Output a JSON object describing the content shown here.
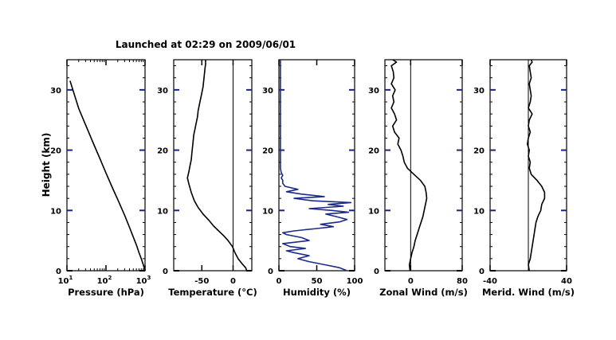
{
  "title": "Launched at 02:29 on 2009/06/01",
  "colors": {
    "axis": "#000000",
    "profile": "#000000",
    "humidity": "#1c2b8a",
    "tick_major": "#1a237e"
  },
  "chart_data": [
    {
      "type": "line",
      "id": "pressure",
      "xlabel": "Pressure (hPa)",
      "ylabel": "Height (km)",
      "xscale": "log",
      "xlim": [
        10,
        1000
      ],
      "xticks": [
        {
          "v": 10,
          "base": "10",
          "exp": "1"
        },
        {
          "v": 100,
          "base": "10",
          "exp": "2"
        },
        {
          "v": 1000,
          "base": "10",
          "exp": "3"
        }
      ],
      "ylim": [
        0,
        35
      ],
      "yticks": [
        "0",
        "10",
        "20",
        "30"
      ],
      "x": [
        1000,
        900,
        800,
        700,
        600,
        500,
        400,
        300,
        200,
        150,
        100,
        70,
        50,
        30,
        20,
        12
      ],
      "y": [
        0,
        1,
        2,
        3,
        4.3,
        5.6,
        7.2,
        9.2,
        11.8,
        13.6,
        16.2,
        18.6,
        20.8,
        24.2,
        26.9,
        31.5
      ]
    },
    {
      "type": "line",
      "id": "temperature",
      "xlabel": "Temperature (°C)",
      "xlim": [
        -95,
        30
      ],
      "xticks": [
        {
          "v": -50,
          "label": "-50"
        },
        {
          "v": 0,
          "label": "0"
        }
      ],
      "vline": 0,
      "ylim": [
        0,
        35
      ],
      "yticks": [
        "0",
        "10",
        "20",
        "30"
      ],
      "x": [
        22,
        20,
        14,
        8,
        3,
        -1,
        -8,
        -15,
        -23,
        -31,
        -39,
        -48,
        -56,
        -62,
        -67,
        -71,
        -73,
        -71,
        -69,
        -67,
        -66,
        -65,
        -64,
        -63,
        -61,
        -59,
        -57,
        -56,
        -54,
        -52,
        -50,
        -48,
        -47,
        -46,
        -45,
        -44,
        -44
      ],
      "y": [
        0,
        0.5,
        1.2,
        2,
        3,
        4,
        5,
        5.8,
        6.6,
        7.4,
        8.4,
        9.4,
        10.5,
        11.6,
        13,
        14.5,
        15.4,
        16.3,
        17.4,
        18.4,
        19.4,
        20.4,
        21.4,
        22.5,
        23.5,
        24.5,
        25.5,
        26.5,
        27.5,
        28.5,
        29.5,
        30.5,
        31.5,
        32.5,
        33.5,
        34.3,
        35
      ]
    },
    {
      "type": "line",
      "id": "humidity",
      "xlabel": "Humidity (%)",
      "xlim": [
        0,
        100
      ],
      "xticks": [
        {
          "v": 0,
          "label": "0"
        },
        {
          "v": 50,
          "label": "50"
        },
        {
          "v": 100,
          "label": "100"
        }
      ],
      "ylim": [
        0,
        35
      ],
      "yticks": [
        "0",
        "10",
        "20",
        "30"
      ],
      "x": [
        90,
        80,
        60,
        40,
        25,
        40,
        20,
        10,
        35,
        15,
        5,
        40,
        30,
        10,
        5,
        20,
        50,
        72,
        55,
        80,
        90,
        75,
        62,
        92,
        70,
        40,
        85,
        65,
        95,
        45,
        20,
        60,
        30,
        10,
        25,
        8,
        5,
        5,
        3,
        5,
        3,
        2,
        2,
        2
      ],
      "y": [
        0,
        0.5,
        1,
        1.5,
        2,
        2.5,
        3,
        3.3,
        3.7,
        4,
        4.5,
        5,
        5.5,
        6,
        6.3,
        6.6,
        7,
        7.3,
        7.7,
        8.1,
        8.5,
        9,
        9.4,
        9.7,
        10,
        10.3,
        10.7,
        11,
        11.3,
        11.6,
        12,
        12.3,
        12.7,
        13.1,
        13.5,
        14,
        14.5,
        15,
        15.4,
        15.8,
        16.3,
        17,
        25,
        35
      ]
    },
    {
      "type": "line",
      "id": "zonal",
      "xlabel": "Zonal Wind (m/s)",
      "xlim": [
        -40,
        80
      ],
      "xticks": [
        {
          "v": 0,
          "label": "0"
        },
        {
          "v": 80,
          "label": "80"
        }
      ],
      "vline": 0,
      "ylim": [
        0,
        35
      ],
      "yticks": [
        "0",
        "10",
        "20",
        "30"
      ],
      "x": [
        -1,
        -2,
        0,
        2,
        5,
        7,
        10,
        13,
        16,
        19,
        21,
        23,
        25,
        24,
        22,
        15,
        5,
        -5,
        -10,
        -12,
        -15,
        -20,
        -18,
        -25,
        -28,
        -22,
        -25,
        -30,
        -26,
        -28,
        -24,
        -30,
        -26,
        -27,
        -30,
        -22,
        -28
      ],
      "y": [
        0,
        1,
        2,
        3,
        4,
        5,
        6,
        7,
        8,
        9,
        10,
        11,
        12,
        13,
        14,
        15,
        16,
        17,
        18,
        19,
        20,
        21,
        22,
        23,
        24,
        25,
        26,
        27,
        28,
        29,
        30,
        31,
        32,
        33,
        34,
        34.6,
        35
      ]
    },
    {
      "type": "line",
      "id": "meridional",
      "xlabel": "Merid. Wind (m/s)",
      "xlim": [
        -40,
        40
      ],
      "xticks": [
        {
          "v": -40,
          "label": "-40"
        },
        {
          "v": 40,
          "label": "40"
        }
      ],
      "vline": 0,
      "ylim": [
        0,
        35
      ],
      "yticks": [
        "0",
        "10",
        "20",
        "30"
      ],
      "x": [
        1,
        0,
        2,
        3,
        4,
        5,
        6,
        7,
        8,
        10,
        13,
        14,
        17,
        17,
        14,
        9,
        3,
        1,
        2,
        0,
        1,
        -1,
        0,
        2,
        0,
        1,
        4,
        0,
        2,
        3,
        2,
        1,
        3,
        2,
        1,
        4,
        3
      ],
      "y": [
        0,
        1,
        2,
        3,
        4,
        5,
        6,
        7,
        8,
        9,
        10,
        11,
        12,
        13,
        14,
        15,
        16,
        17,
        18,
        19,
        20,
        21,
        22,
        23,
        24,
        25,
        26,
        27,
        28,
        29,
        30,
        31,
        32,
        33,
        34,
        34.6,
        35
      ]
    }
  ]
}
